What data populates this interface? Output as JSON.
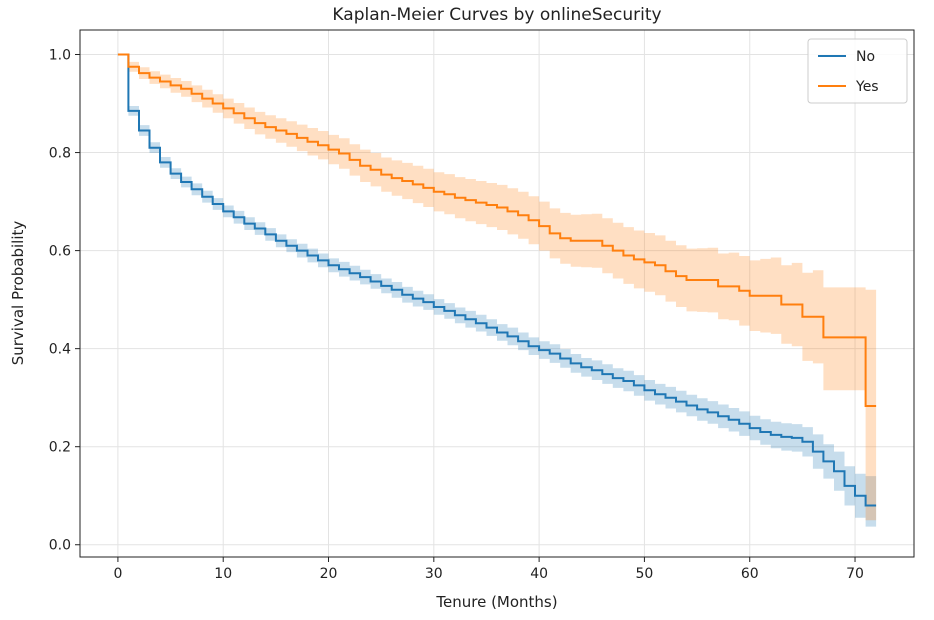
{
  "chart_data": {
    "type": "line",
    "title": "Kaplan-Meier Curves by onlineSecurity",
    "xlabel": "Tenure (Months)",
    "ylabel": "Survival Probability",
    "xlim": [
      -3.6,
      75.6
    ],
    "ylim": [
      -0.025,
      1.05
    ],
    "xticks": [
      0,
      10,
      20,
      30,
      40,
      50,
      60,
      70
    ],
    "xtick_labels": [
      "0",
      "10",
      "20",
      "30",
      "40",
      "50",
      "60",
      "70"
    ],
    "yticks": [
      0,
      0.2,
      0.4,
      0.6,
      0.8,
      1.0
    ],
    "ytick_labels": [
      "0.0",
      "0.2",
      "0.4",
      "0.6",
      "0.8",
      "1.0"
    ],
    "grid": true,
    "legend": "top-right",
    "step": true,
    "x": [
      0,
      1,
      2,
      3,
      4,
      5,
      6,
      7,
      8,
      9,
      10,
      11,
      12,
      13,
      14,
      15,
      16,
      17,
      18,
      19,
      20,
      21,
      22,
      23,
      24,
      25,
      26,
      27,
      28,
      29,
      30,
      31,
      32,
      33,
      34,
      35,
      36,
      37,
      38,
      39,
      40,
      41,
      42,
      43,
      44,
      45,
      46,
      47,
      48,
      49,
      50,
      51,
      52,
      53,
      54,
      55,
      56,
      57,
      58,
      59,
      60,
      61,
      62,
      63,
      64,
      65,
      66,
      67,
      68,
      69,
      70,
      71,
      72
    ],
    "series": [
      {
        "name": "No",
        "color": "#1f77b4",
        "values": [
          1.0,
          0.885,
          0.845,
          0.81,
          0.78,
          0.757,
          0.74,
          0.725,
          0.71,
          0.695,
          0.68,
          0.668,
          0.655,
          0.645,
          0.633,
          0.62,
          0.61,
          0.6,
          0.59,
          0.58,
          0.57,
          0.562,
          0.554,
          0.546,
          0.537,
          0.528,
          0.52,
          0.51,
          0.502,
          0.495,
          0.485,
          0.477,
          0.468,
          0.46,
          0.452,
          0.443,
          0.433,
          0.425,
          0.415,
          0.405,
          0.397,
          0.39,
          0.38,
          0.37,
          0.362,
          0.356,
          0.348,
          0.34,
          0.334,
          0.325,
          0.315,
          0.307,
          0.3,
          0.292,
          0.284,
          0.276,
          0.27,
          0.262,
          0.255,
          0.247,
          0.238,
          0.23,
          0.224,
          0.22,
          0.218,
          0.21,
          0.19,
          0.17,
          0.15,
          0.12,
          0.1,
          0.08,
          0.08
        ],
        "ci_lower": [
          1.0,
          0.875,
          0.834,
          0.799,
          0.769,
          0.746,
          0.729,
          0.713,
          0.698,
          0.683,
          0.668,
          0.655,
          0.642,
          0.632,
          0.62,
          0.607,
          0.597,
          0.586,
          0.576,
          0.566,
          0.556,
          0.547,
          0.539,
          0.531,
          0.522,
          0.513,
          0.504,
          0.494,
          0.486,
          0.479,
          0.469,
          0.461,
          0.452,
          0.443,
          0.435,
          0.426,
          0.416,
          0.407,
          0.397,
          0.387,
          0.379,
          0.371,
          0.361,
          0.351,
          0.343,
          0.336,
          0.328,
          0.32,
          0.313,
          0.304,
          0.294,
          0.286,
          0.278,
          0.27,
          0.262,
          0.253,
          0.247,
          0.238,
          0.231,
          0.222,
          0.213,
          0.204,
          0.197,
          0.192,
          0.19,
          0.18,
          0.155,
          0.135,
          0.11,
          0.08,
          0.055,
          0.037,
          0.037
        ],
        "ci_upper": [
          1.0,
          0.895,
          0.856,
          0.821,
          0.791,
          0.768,
          0.751,
          0.737,
          0.722,
          0.707,
          0.692,
          0.681,
          0.668,
          0.658,
          0.646,
          0.633,
          0.623,
          0.614,
          0.604,
          0.594,
          0.584,
          0.577,
          0.569,
          0.561,
          0.552,
          0.543,
          0.536,
          0.526,
          0.518,
          0.511,
          0.501,
          0.493,
          0.484,
          0.477,
          0.469,
          0.46,
          0.45,
          0.443,
          0.433,
          0.423,
          0.415,
          0.409,
          0.399,
          0.389,
          0.381,
          0.376,
          0.368,
          0.36,
          0.355,
          0.346,
          0.336,
          0.328,
          0.322,
          0.314,
          0.306,
          0.299,
          0.293,
          0.286,
          0.279,
          0.272,
          0.263,
          0.256,
          0.251,
          0.248,
          0.246,
          0.24,
          0.225,
          0.205,
          0.19,
          0.16,
          0.145,
          0.14,
          0.14
        ]
      },
      {
        "name": "Yes",
        "color": "#ff7f0e",
        "values": [
          1.0,
          0.975,
          0.962,
          0.953,
          0.945,
          0.937,
          0.93,
          0.92,
          0.91,
          0.9,
          0.89,
          0.88,
          0.87,
          0.86,
          0.852,
          0.845,
          0.838,
          0.83,
          0.822,
          0.815,
          0.806,
          0.798,
          0.785,
          0.773,
          0.765,
          0.755,
          0.748,
          0.742,
          0.735,
          0.728,
          0.72,
          0.715,
          0.708,
          0.703,
          0.698,
          0.693,
          0.688,
          0.68,
          0.672,
          0.662,
          0.65,
          0.635,
          0.625,
          0.62,
          0.62,
          0.62,
          0.61,
          0.6,
          0.59,
          0.582,
          0.576,
          0.57,
          0.558,
          0.548,
          0.54,
          0.54,
          0.54,
          0.527,
          0.527,
          0.518,
          0.508,
          0.508,
          0.508,
          0.49,
          0.49,
          0.465,
          0.465,
          0.423,
          0.423,
          0.423,
          0.423,
          0.283,
          0.283
        ],
        "ci_lower": [
          1.0,
          0.965,
          0.95,
          0.94,
          0.931,
          0.922,
          0.914,
          0.903,
          0.892,
          0.881,
          0.87,
          0.859,
          0.848,
          0.837,
          0.828,
          0.82,
          0.812,
          0.803,
          0.794,
          0.786,
          0.776,
          0.767,
          0.753,
          0.74,
          0.731,
          0.72,
          0.712,
          0.705,
          0.697,
          0.689,
          0.68,
          0.674,
          0.666,
          0.66,
          0.654,
          0.648,
          0.642,
          0.633,
          0.624,
          0.613,
          0.6,
          0.584,
          0.573,
          0.567,
          0.566,
          0.565,
          0.554,
          0.543,
          0.532,
          0.523,
          0.516,
          0.509,
          0.496,
          0.485,
          0.476,
          0.475,
          0.474,
          0.46,
          0.458,
          0.447,
          0.436,
          0.433,
          0.43,
          0.41,
          0.405,
          0.375,
          0.37,
          0.315,
          0.315,
          0.315,
          0.315,
          0.05,
          0.05
        ],
        "ci_upper": [
          1.0,
          0.985,
          0.974,
          0.966,
          0.959,
          0.952,
          0.946,
          0.937,
          0.928,
          0.919,
          0.91,
          0.901,
          0.892,
          0.883,
          0.876,
          0.87,
          0.864,
          0.857,
          0.85,
          0.844,
          0.836,
          0.829,
          0.817,
          0.806,
          0.799,
          0.79,
          0.784,
          0.779,
          0.773,
          0.767,
          0.76,
          0.756,
          0.75,
          0.746,
          0.742,
          0.738,
          0.734,
          0.727,
          0.72,
          0.711,
          0.7,
          0.686,
          0.677,
          0.673,
          0.674,
          0.675,
          0.666,
          0.657,
          0.648,
          0.641,
          0.636,
          0.631,
          0.62,
          0.611,
          0.604,
          0.605,
          0.606,
          0.594,
          0.596,
          0.589,
          0.58,
          0.583,
          0.586,
          0.57,
          0.575,
          0.555,
          0.56,
          0.525,
          0.525,
          0.525,
          0.525,
          0.52,
          0.52
        ]
      }
    ]
  }
}
